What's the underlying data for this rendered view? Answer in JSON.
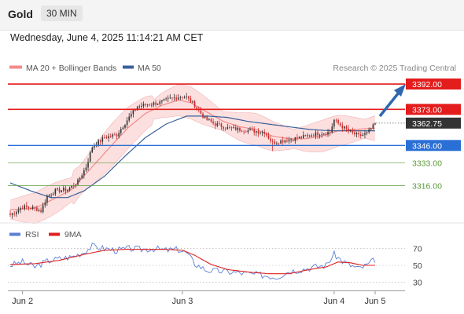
{
  "header": {
    "instrument": "Gold",
    "interval": "30 MIN",
    "datetime": "Wednesday, June 4, 2025 11:14:21 AM CET"
  },
  "legend": {
    "ma20": "MA 20 + Bollinger Bands",
    "ma50": "MA 50",
    "source": "Research © 2025 Trading Central",
    "rsi": "RSI",
    "rsi_ma": "9MA"
  },
  "colors": {
    "ma20": "#f28a8a",
    "band": "#fbd5d5",
    "ma50": "#3a5f9a",
    "resistance": "#e31c1c",
    "support": "#2a6fd6",
    "target": "#5a9a3a",
    "arrow": "#2e67b1",
    "current": "#333333",
    "candle_up": "#333333",
    "candle_down": "#cc2a2a",
    "rsi": "#5b7fd6",
    "rsi_ma": "#e02020"
  },
  "chart_data": [
    {
      "type": "line",
      "subtype": "candlestick",
      "x": [
        "Jun 2",
        "Jun 3",
        "Jun 4",
        "Jun 5"
      ],
      "ylim": [
        3288,
        3402
      ],
      "levels": [
        {
          "label": "3392.00",
          "value": 3392.0,
          "kind": "resistance"
        },
        {
          "label": "3373.00",
          "value": 3373.0,
          "kind": "resistance"
        },
        {
          "label": "3362.75",
          "value": 3362.75,
          "kind": "current"
        },
        {
          "label": "3346.00",
          "value": 3346.0,
          "kind": "support"
        },
        {
          "label": "3333.00",
          "value": 3333.0,
          "kind": "target"
        },
        {
          "label": "3316.00",
          "value": 3316.0,
          "kind": "target"
        }
      ],
      "close_anchors": [
        [
          0,
          3294
        ],
        [
          6,
          3300
        ],
        [
          12,
          3299
        ],
        [
          15,
          3297
        ],
        [
          18,
          3308
        ],
        [
          22,
          3312
        ],
        [
          28,
          3313
        ],
        [
          33,
          3319
        ],
        [
          37,
          3330
        ],
        [
          40,
          3345
        ],
        [
          46,
          3352
        ],
        [
          52,
          3354
        ],
        [
          57,
          3365
        ],
        [
          62,
          3375
        ],
        [
          68,
          3377
        ],
        [
          73,
          3378
        ],
        [
          78,
          3381
        ],
        [
          84,
          3383
        ],
        [
          86,
          3382
        ],
        [
          90,
          3376
        ],
        [
          95,
          3366
        ],
        [
          100,
          3362
        ],
        [
          106,
          3359
        ],
        [
          112,
          3358
        ],
        [
          118,
          3357
        ],
        [
          124,
          3356
        ],
        [
          128,
          3348
        ],
        [
          134,
          3350
        ],
        [
          142,
          3352
        ],
        [
          150,
          3355
        ],
        [
          156,
          3356
        ],
        [
          158,
          3365
        ],
        [
          162,
          3360
        ],
        [
          166,
          3356
        ],
        [
          170,
          3353
        ],
        [
          174,
          3355
        ],
        [
          178,
          3362
        ]
      ],
      "ma20_anchors": [
        [
          0,
          3298
        ],
        [
          12,
          3299
        ],
        [
          20,
          3305
        ],
        [
          30,
          3313
        ],
        [
          40,
          3330
        ],
        [
          50,
          3347
        ],
        [
          58,
          3360
        ],
        [
          66,
          3370
        ],
        [
          74,
          3376
        ],
        [
          82,
          3380
        ],
        [
          88,
          3378
        ],
        [
          96,
          3371
        ],
        [
          104,
          3364
        ],
        [
          112,
          3360
        ],
        [
          120,
          3358
        ],
        [
          128,
          3353
        ],
        [
          136,
          3351
        ],
        [
          144,
          3351
        ],
        [
          152,
          3353
        ],
        [
          160,
          3357
        ],
        [
          168,
          3358
        ],
        [
          178,
          3359
        ]
      ],
      "ma50_anchors": [
        [
          0,
          3318
        ],
        [
          10,
          3312
        ],
        [
          20,
          3307
        ],
        [
          28,
          3307
        ],
        [
          36,
          3312
        ],
        [
          46,
          3323
        ],
        [
          56,
          3338
        ],
        [
          66,
          3352
        ],
        [
          76,
          3362
        ],
        [
          86,
          3368
        ],
        [
          96,
          3368
        ],
        [
          106,
          3367
        ],
        [
          116,
          3364
        ],
        [
          126,
          3362
        ],
        [
          136,
          3360
        ],
        [
          146,
          3358
        ],
        [
          156,
          3357
        ],
        [
          166,
          3357
        ],
        [
          178,
          3357
        ]
      ]
    },
    {
      "type": "line",
      "ylim": [
        20,
        80
      ],
      "ticks": [
        {
          "label": "70",
          "value": 70
        },
        {
          "label": "50",
          "value": 50
        },
        {
          "label": "30",
          "value": 30
        }
      ],
      "rsi_anchors": [
        [
          0,
          50
        ],
        [
          6,
          54
        ],
        [
          12,
          48
        ],
        [
          18,
          55
        ],
        [
          24,
          58
        ],
        [
          30,
          60
        ],
        [
          36,
          66
        ],
        [
          40,
          73
        ],
        [
          46,
          70
        ],
        [
          52,
          68
        ],
        [
          58,
          70
        ],
        [
          64,
          69
        ],
        [
          70,
          70
        ],
        [
          76,
          68
        ],
        [
          82,
          69
        ],
        [
          86,
          65
        ],
        [
          90,
          52
        ],
        [
          96,
          44
        ],
        [
          102,
          43
        ],
        [
          108,
          42
        ],
        [
          116,
          40
        ],
        [
          124,
          38
        ],
        [
          130,
          36
        ],
        [
          136,
          43
        ],
        [
          142,
          45
        ],
        [
          148,
          48
        ],
        [
          154,
          50
        ],
        [
          158,
          63
        ],
        [
          162,
          55
        ],
        [
          166,
          50
        ],
        [
          170,
          46
        ],
        [
          174,
          50
        ],
        [
          178,
          57
        ]
      ],
      "rsi_ma_anchors": [
        [
          0,
          51
        ],
        [
          12,
          52
        ],
        [
          24,
          56
        ],
        [
          36,
          63
        ],
        [
          46,
          68
        ],
        [
          56,
          69
        ],
        [
          66,
          69
        ],
        [
          76,
          69
        ],
        [
          84,
          68
        ],
        [
          90,
          62
        ],
        [
          98,
          51
        ],
        [
          106,
          45
        ],
        [
          116,
          42
        ],
        [
          126,
          40
        ],
        [
          136,
          40
        ],
        [
          146,
          45
        ],
        [
          154,
          48
        ],
        [
          160,
          54
        ],
        [
          166,
          53
        ],
        [
          172,
          50
        ],
        [
          178,
          50
        ]
      ]
    }
  ]
}
